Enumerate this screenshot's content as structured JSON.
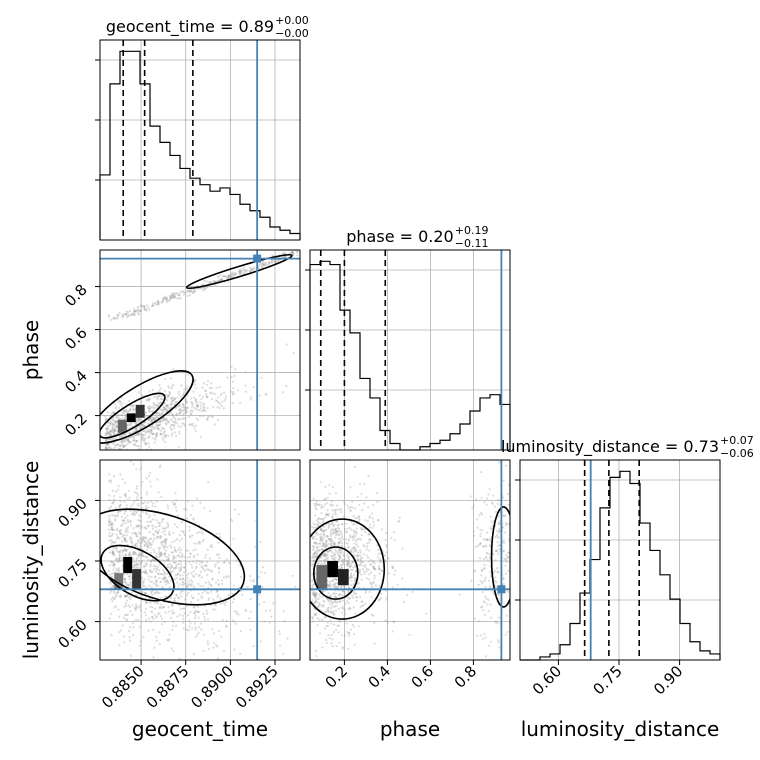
{
  "chart_data": {
    "type": "corner",
    "parameters": [
      "geocent_time",
      "phase",
      "luminosity_distance"
    ],
    "axis_labels": [
      "geocent_time",
      "phase",
      "luminosity_distance"
    ],
    "ranges": {
      "geocent_time": [
        0.8827,
        0.8939
      ],
      "phase": [
        0.04,
        0.97
      ],
      "luminosity_distance": [
        0.505,
        1.0
      ]
    },
    "truths": {
      "geocent_time": 0.8915,
      "phase": 0.93,
      "luminosity_distance": 0.68
    },
    "truth_color": "#4682b4",
    "ticks": {
      "geocent_time": {
        "values": [
          0.885,
          0.8875,
          0.89,
          0.8925
        ],
        "labels": [
          "0.8850",
          "0.8875",
          "0.8900",
          "0.8925"
        ]
      },
      "phase": {
        "values": [
          0.2,
          0.4,
          0.6,
          0.8
        ],
        "labels": [
          "0.2",
          "0.4",
          "0.6",
          "0.8"
        ]
      },
      "luminosity_distance": {
        "values": [
          0.6,
          0.75,
          0.9
        ],
        "labels": [
          "0.60",
          "0.75",
          "0.90"
        ]
      }
    },
    "titles": [
      {
        "name": "geocent_time",
        "text": "geocent_time = 0.89",
        "plus": "+0.00",
        "minus": "−0.00"
      },
      {
        "name": "phase",
        "text": "phase = 0.20",
        "plus": "+0.19",
        "minus": "−0.11"
      },
      {
        "name": "luminosity_distance",
        "text": "luminosity_distance = 0.73",
        "plus": "+0.07",
        "minus": "−0.06"
      }
    ],
    "quantiles": {
      "geocent_time": [
        0.884,
        0.8852,
        0.8879
      ],
      "phase": [
        0.09,
        0.2,
        0.39
      ],
      "luminosity_distance": [
        0.665,
        0.725,
        0.8
      ]
    },
    "histograms": {
      "geocent_time": [
        20,
        48,
        58,
        58,
        48,
        35,
        30,
        26,
        22,
        19,
        17,
        15,
        16,
        14,
        11,
        9,
        7,
        4,
        3,
        2
      ],
      "phase": [
        57,
        58,
        57,
        43,
        36,
        22,
        16,
        6,
        2,
        0,
        0,
        1,
        2,
        3,
        5,
        8,
        12,
        16,
        17,
        14
      ],
      "luminosity_distance": [
        0,
        0,
        1,
        2,
        5,
        12,
        22,
        33,
        50,
        60,
        62,
        58,
        45,
        36,
        28,
        20,
        12,
        6,
        3,
        2
      ]
    },
    "scatter_density": "dense grey sample points with black 1-2 sigma contours",
    "grid": true
  }
}
